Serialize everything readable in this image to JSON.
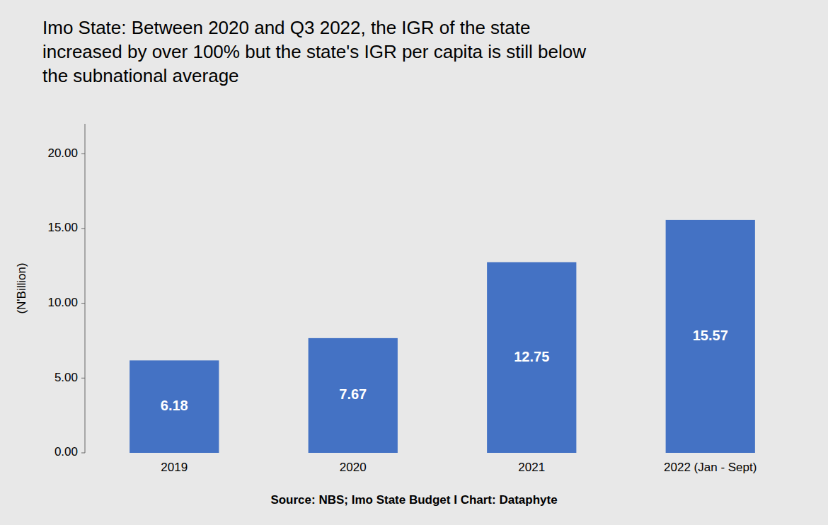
{
  "chart_data": {
    "type": "bar",
    "title": "Imo State: Between 2020 and Q3 2022, the IGR of the state\nincreased by over 100% but the state's IGR per capita is still below\nthe subnational average",
    "categories": [
      "2019",
      "2020",
      "2021",
      "2022 (Jan - Sept)"
    ],
    "values": [
      6.18,
      7.67,
      12.75,
      15.57
    ],
    "color": "#4472C4",
    "ylabel": "(N'Billion)",
    "ylim": [
      0,
      22
    ],
    "yticks": [
      {
        "value": 0,
        "label": "0.00"
      },
      {
        "value": 5,
        "label": "5.00"
      },
      {
        "value": 10,
        "label": "10.00"
      },
      {
        "value": 15,
        "label": "15.00"
      },
      {
        "value": 20,
        "label": "20.00"
      }
    ],
    "grid": false,
    "data_labels": true,
    "source": "Source: NBS; Imo State Budget I Chart: Dataphyte"
  }
}
